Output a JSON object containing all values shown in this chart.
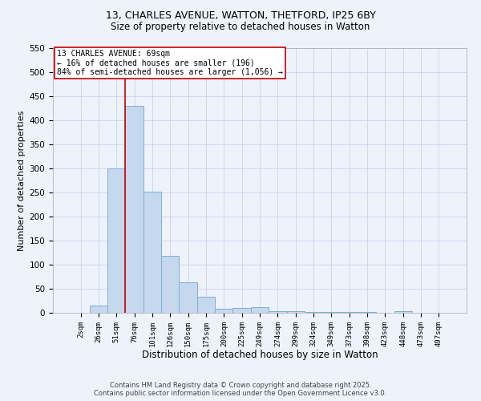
{
  "title_line1": "13, CHARLES AVENUE, WATTON, THETFORD, IP25 6BY",
  "title_line2": "Size of property relative to detached houses in Watton",
  "xlabel": "Distribution of detached houses by size in Watton",
  "ylabel": "Number of detached properties",
  "bar_labels": [
    "2sqm",
    "26sqm",
    "51sqm",
    "76sqm",
    "101sqm",
    "126sqm",
    "150sqm",
    "175sqm",
    "200sqm",
    "225sqm",
    "249sqm",
    "274sqm",
    "299sqm",
    "324sqm",
    "349sqm",
    "373sqm",
    "398sqm",
    "423sqm",
    "448sqm",
    "473sqm",
    "497sqm"
  ],
  "bar_values": [
    0,
    15,
    300,
    430,
    252,
    118,
    63,
    33,
    8,
    10,
    12,
    4,
    3,
    1,
    1,
    1,
    1,
    0,
    4,
    0,
    0
  ],
  "bar_color": "#c5d8ee",
  "bar_edge_color": "#7bafd4",
  "vline_x_idx": 2.5,
  "vline_color": "#cc0000",
  "annotation_text": "13 CHARLES AVENUE: 69sqm\n← 16% of detached houses are smaller (196)\n84% of semi-detached houses are larger (1,056) →",
  "annotation_box_color": "#ffffff",
  "annotation_box_edge": "#cc0000",
  "ylim": [
    0,
    550
  ],
  "yticks": [
    0,
    50,
    100,
    150,
    200,
    250,
    300,
    350,
    400,
    450,
    500,
    550
  ],
  "footer_line1": "Contains HM Land Registry data © Crown copyright and database right 2025.",
  "footer_line2": "Contains public sector information licensed under the Open Government Licence v3.0.",
  "background_color": "#eef2fb",
  "grid_color": "#c8d4e8"
}
